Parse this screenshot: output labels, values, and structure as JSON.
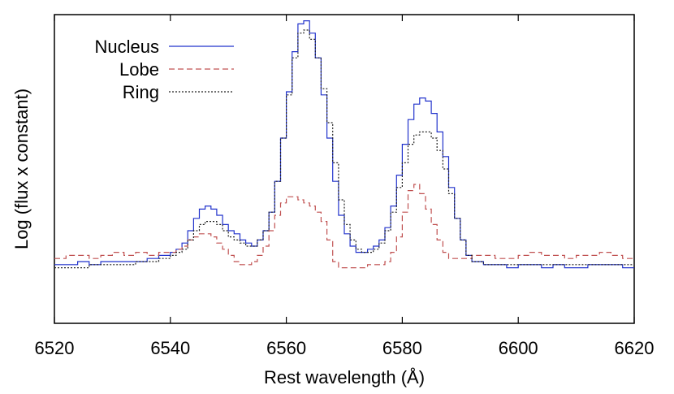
{
  "chart_data": {
    "type": "line",
    "title": "",
    "xlabel": "Rest wavelength (Å)",
    "ylabel": "Log (flux x constant)",
    "xlim": [
      6520,
      6620
    ],
    "x_ticks": [
      6520,
      6540,
      6560,
      6580,
      6600,
      6620
    ],
    "x_tick_labels": [
      "6520",
      "6540",
      "6560",
      "6580",
      "6600",
      "6620"
    ],
    "ylim": [
      0,
      1
    ],
    "y_ticks": [],
    "grid": false,
    "legend_position": "top-left",
    "series": [
      {
        "name": "Nucleus",
        "color": "#2233cc",
        "style": "solid",
        "x": [
          6520,
          6522,
          6524,
          6526,
          6528,
          6530,
          6532,
          6534,
          6536,
          6538,
          6540,
          6541,
          6542,
          6543,
          6544,
          6545,
          6546,
          6547,
          6548,
          6549,
          6550,
          6551,
          6552,
          6553,
          6554,
          6555,
          6556,
          6557,
          6558,
          6559,
          6560,
          6561,
          6562,
          6563,
          6564,
          6565,
          6566,
          6567,
          6568,
          6569,
          6570,
          6571,
          6572,
          6573,
          6574,
          6575,
          6576,
          6577,
          6578,
          6579,
          6580,
          6581,
          6582,
          6583,
          6584,
          6585,
          6586,
          6587,
          6588,
          6589,
          6590,
          6591,
          6592,
          6594,
          6596,
          6598,
          6600,
          6602,
          6604,
          6606,
          6608,
          6610,
          6612,
          6614,
          6616,
          6618,
          6620
        ],
        "values": [
          0.19,
          0.19,
          0.2,
          0.19,
          0.2,
          0.2,
          0.2,
          0.2,
          0.21,
          0.22,
          0.23,
          0.24,
          0.26,
          0.3,
          0.34,
          0.37,
          0.38,
          0.37,
          0.35,
          0.32,
          0.3,
          0.29,
          0.27,
          0.26,
          0.25,
          0.27,
          0.3,
          0.36,
          0.46,
          0.6,
          0.75,
          0.88,
          0.97,
          0.98,
          0.94,
          0.86,
          0.74,
          0.6,
          0.46,
          0.35,
          0.29,
          0.25,
          0.23,
          0.23,
          0.24,
          0.25,
          0.27,
          0.31,
          0.38,
          0.48,
          0.58,
          0.66,
          0.71,
          0.73,
          0.72,
          0.68,
          0.62,
          0.54,
          0.44,
          0.34,
          0.27,
          0.22,
          0.2,
          0.19,
          0.19,
          0.18,
          0.19,
          0.19,
          0.18,
          0.19,
          0.18,
          0.18,
          0.19,
          0.19,
          0.19,
          0.18,
          0.18
        ]
      },
      {
        "name": "Lobe",
        "color": "#c05050",
        "style": "dashed",
        "x": [
          6520,
          6522,
          6524,
          6526,
          6528,
          6530,
          6532,
          6534,
          6536,
          6538,
          6540,
          6541,
          6542,
          6543,
          6544,
          6545,
          6546,
          6547,
          6548,
          6549,
          6550,
          6551,
          6552,
          6553,
          6554,
          6555,
          6556,
          6557,
          6558,
          6559,
          6560,
          6561,
          6562,
          6563,
          6564,
          6565,
          6566,
          6567,
          6568,
          6569,
          6570,
          6572,
          6574,
          6576,
          6577,
          6578,
          6579,
          6580,
          6581,
          6582,
          6583,
          6584,
          6585,
          6586,
          6587,
          6588,
          6589,
          6590,
          6592,
          6594,
          6596,
          6598,
          6600,
          6602,
          6604,
          6606,
          6608,
          6610,
          6612,
          6614,
          6616,
          6618,
          6620
        ],
        "values": [
          0.21,
          0.22,
          0.22,
          0.21,
          0.22,
          0.23,
          0.22,
          0.23,
          0.22,
          0.23,
          0.23,
          0.24,
          0.25,
          0.27,
          0.28,
          0.29,
          0.29,
          0.28,
          0.26,
          0.24,
          0.22,
          0.2,
          0.19,
          0.19,
          0.2,
          0.22,
          0.25,
          0.3,
          0.35,
          0.39,
          0.41,
          0.41,
          0.4,
          0.39,
          0.38,
          0.36,
          0.33,
          0.27,
          0.2,
          0.18,
          0.18,
          0.18,
          0.19,
          0.19,
          0.2,
          0.23,
          0.28,
          0.36,
          0.43,
          0.45,
          0.42,
          0.37,
          0.32,
          0.27,
          0.23,
          0.21,
          0.21,
          0.21,
          0.22,
          0.22,
          0.21,
          0.21,
          0.22,
          0.23,
          0.22,
          0.22,
          0.21,
          0.22,
          0.22,
          0.23,
          0.22,
          0.21,
          0.21
        ]
      },
      {
        "name": "Ring",
        "color": "#222222",
        "style": "dotted",
        "x": [
          6520,
          6522,
          6524,
          6526,
          6528,
          6530,
          6532,
          6534,
          6536,
          6538,
          6540,
          6541,
          6542,
          6543,
          6544,
          6545,
          6546,
          6547,
          6548,
          6549,
          6550,
          6551,
          6552,
          6553,
          6554,
          6555,
          6556,
          6557,
          6558,
          6559,
          6560,
          6561,
          6562,
          6563,
          6564,
          6565,
          6566,
          6567,
          6568,
          6569,
          6570,
          6571,
          6572,
          6573,
          6574,
          6575,
          6576,
          6577,
          6578,
          6579,
          6580,
          6581,
          6582,
          6583,
          6584,
          6585,
          6586,
          6587,
          6588,
          6589,
          6590,
          6591,
          6592,
          6594,
          6596,
          6598,
          6600,
          6602,
          6604,
          6606,
          6608,
          6610,
          6612,
          6614,
          6616,
          6618,
          6620
        ],
        "values": [
          0.18,
          0.18,
          0.18,
          0.19,
          0.19,
          0.19,
          0.19,
          0.2,
          0.2,
          0.21,
          0.22,
          0.23,
          0.24,
          0.27,
          0.3,
          0.32,
          0.33,
          0.33,
          0.32,
          0.3,
          0.28,
          0.27,
          0.26,
          0.25,
          0.25,
          0.27,
          0.3,
          0.36,
          0.46,
          0.6,
          0.74,
          0.86,
          0.94,
          0.95,
          0.92,
          0.86,
          0.76,
          0.65,
          0.52,
          0.4,
          0.32,
          0.27,
          0.24,
          0.23,
          0.23,
          0.24,
          0.26,
          0.3,
          0.36,
          0.44,
          0.52,
          0.58,
          0.61,
          0.62,
          0.62,
          0.6,
          0.56,
          0.5,
          0.42,
          0.34,
          0.27,
          0.22,
          0.2,
          0.19,
          0.19,
          0.19,
          0.19,
          0.19,
          0.19,
          0.19,
          0.19,
          0.19,
          0.19,
          0.19,
          0.19,
          0.19,
          0.19
        ]
      }
    ]
  }
}
